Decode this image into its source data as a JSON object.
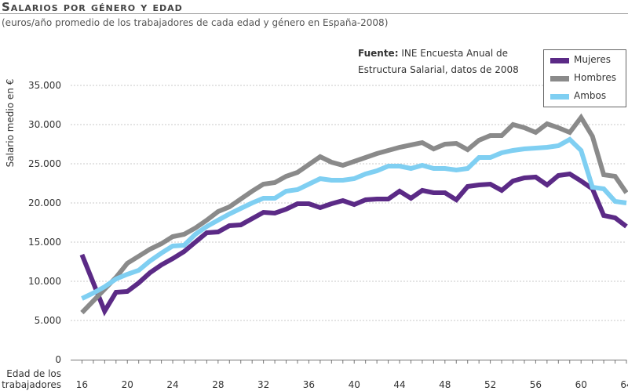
{
  "header": {
    "title": "Salarios por género y edad",
    "subtitle": "(euros/año promedio de los trabajadores de cada edad y género en España-2008)"
  },
  "source": {
    "label": "Fuente:",
    "text": "INE Encuesta Anual de",
    "text2": "Estructura Salarial, datos de 2008"
  },
  "chart_data": {
    "type": "line",
    "title": "Salarios por género y edad",
    "ylabel": "Salario medio en €",
    "xlabel": "Edad de los trabajadores",
    "xlim": [
      15,
      64
    ],
    "ylim": [
      0,
      35000
    ],
    "yticks": [
      "0",
      "5.000",
      "10.000",
      "15.000",
      "20.000",
      "25.000",
      "30.000",
      "35.000"
    ],
    "ytick_values": [
      0,
      5000,
      10000,
      15000,
      20000,
      25000,
      30000,
      35000
    ],
    "xticks": [
      16,
      20,
      24,
      28,
      32,
      36,
      40,
      44,
      48,
      52,
      56,
      60,
      64
    ],
    "grid": "horizontal dashed",
    "legend_position": "top-right",
    "x": [
      16,
      17,
      18,
      19,
      20,
      21,
      22,
      23,
      24,
      25,
      26,
      27,
      28,
      29,
      30,
      31,
      32,
      33,
      34,
      35,
      36,
      37,
      38,
      39,
      40,
      41,
      42,
      43,
      44,
      45,
      46,
      47,
      48,
      49,
      50,
      51,
      52,
      53,
      54,
      55,
      56,
      57,
      58,
      59,
      60,
      61,
      62,
      63,
      64
    ],
    "series": [
      {
        "name": "Mujeres",
        "color": "#5b2a86",
        "values": [
          13400,
          9800,
          6200,
          8600,
          8700,
          9800,
          11100,
          12100,
          12900,
          13800,
          15000,
          16200,
          16300,
          17100,
          17200,
          18000,
          18800,
          18700,
          19200,
          19900,
          19900,
          19400,
          19900,
          20300,
          19800,
          20400,
          20500,
          20500,
          21500,
          20600,
          21600,
          21300,
          21300,
          20400,
          22100,
          22300,
          22400,
          21600,
          22800,
          23200,
          23300,
          22300,
          23500,
          23700,
          22800,
          21800,
          18400,
          18100,
          17000
        ]
      },
      {
        "name": "Hombres",
        "color": "#8a8a8a",
        "values": [
          6000,
          7500,
          9000,
          10500,
          12300,
          13200,
          14100,
          14800,
          15700,
          16000,
          16800,
          17800,
          18900,
          19500,
          20500,
          21500,
          22400,
          22600,
          23400,
          23900,
          24900,
          25900,
          25200,
          24800,
          25300,
          25800,
          26300,
          26700,
          27100,
          27400,
          27700,
          26900,
          27500,
          27600,
          26800,
          28000,
          28600,
          28600,
          30000,
          29600,
          29000,
          30100,
          29600,
          29000,
          30900,
          28500,
          23600,
          23400,
          21300
        ]
      },
      {
        "name": "Ambos",
        "color": "#7fcff2",
        "values": [
          7800,
          8500,
          9300,
          10300,
          10900,
          11400,
          12600,
          13600,
          14500,
          14600,
          16000,
          17000,
          17800,
          18600,
          19300,
          20000,
          20600,
          20600,
          21500,
          21700,
          22400,
          23100,
          22900,
          22900,
          23100,
          23700,
          24100,
          24700,
          24700,
          24400,
          24800,
          24400,
          24400,
          24200,
          24400,
          25800,
          25800,
          26400,
          26700,
          26900,
          27000,
          27100,
          27300,
          28100,
          26700,
          22000,
          21800,
          20200,
          20000
        ]
      }
    ]
  }
}
